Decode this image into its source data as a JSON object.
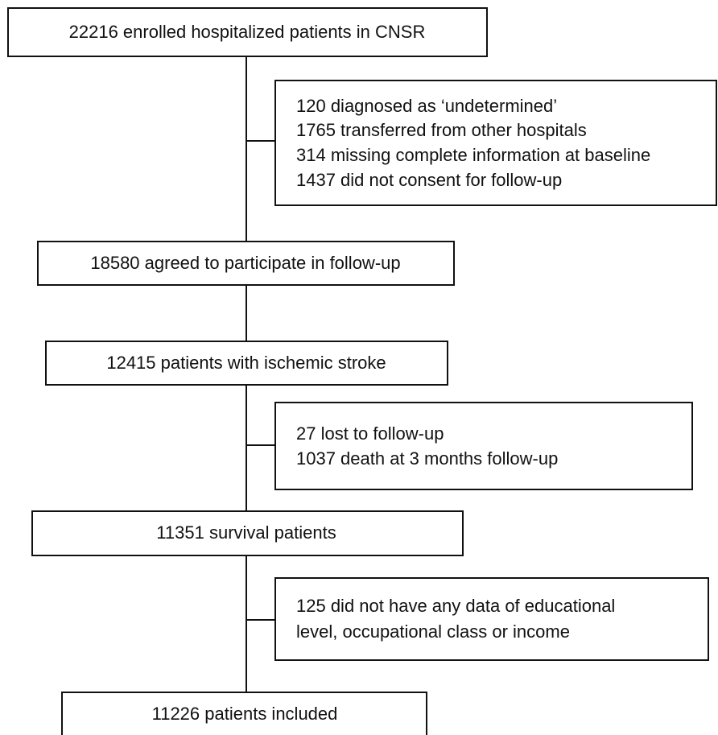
{
  "nodes": [
    {
      "label": "22216 enrolled hospitalized patients in CNSR"
    },
    {
      "label": "18580  agreed to participate in follow-up"
    },
    {
      "label": "12415 patients with ischemic stroke"
    },
    {
      "label": "11351 survival patients"
    },
    {
      "label": "11226 patients included"
    }
  ],
  "exclusions": [
    {
      "lines": [
        "120 diagnosed as ‘undetermined’",
        "1765 transferred from other hospitals",
        "314 missing complete information at baseline",
        "1437 did not consent for follow-up"
      ]
    },
    {
      "lines": [
        "27 lost to follow-up",
        "1037 death at 3 months follow-up"
      ]
    },
    {
      "lines": [
        "125 did not have any data of educational",
        "level, occupational class or income"
      ]
    }
  ]
}
